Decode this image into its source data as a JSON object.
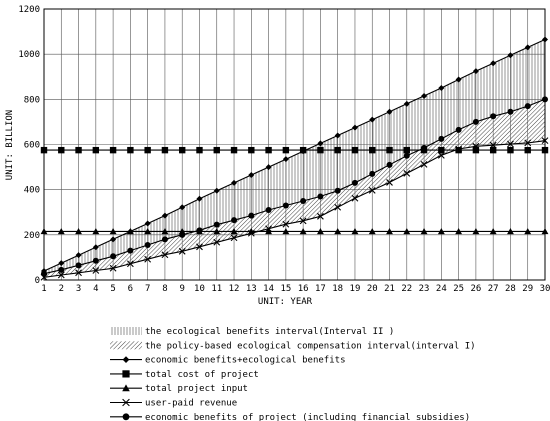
{
  "chart_data": {
    "type": "line",
    "xlabel": "UNIT: YEAR",
    "ylabel": "UNIT: BILLION",
    "xlim": [
      1,
      30
    ],
    "ylim": [
      0,
      1200
    ],
    "x_ticks": [
      1,
      2,
      3,
      4,
      5,
      6,
      7,
      8,
      9,
      10,
      11,
      12,
      13,
      14,
      15,
      16,
      17,
      18,
      19,
      20,
      21,
      22,
      23,
      24,
      25,
      26,
      27,
      28,
      29,
      30
    ],
    "y_ticks": [
      0,
      200,
      400,
      600,
      800,
      1000,
      1200
    ],
    "grid": true,
    "legend_position": "bottom",
    "x": [
      1,
      2,
      3,
      4,
      5,
      6,
      7,
      8,
      9,
      10,
      11,
      12,
      13,
      14,
      15,
      16,
      17,
      18,
      19,
      20,
      21,
      22,
      23,
      24,
      25,
      26,
      27,
      28,
      29,
      30
    ],
    "series": [
      {
        "name": "economic benefits+ecological benefits",
        "marker": "diamond",
        "values": [
          40,
          75,
          110,
          145,
          180,
          215,
          250,
          285,
          322,
          360,
          395,
          430,
          465,
          500,
          535,
          570,
          605,
          640,
          675,
          710,
          745,
          780,
          815,
          850,
          888,
          925,
          960,
          995,
          1030,
          1065
        ]
      },
      {
        "name": "total cost of project",
        "marker": "square",
        "values": [
          575,
          575,
          575,
          575,
          575,
          575,
          575,
          575,
          575,
          575,
          575,
          575,
          575,
          575,
          575,
          575,
          575,
          575,
          575,
          575,
          575,
          575,
          575,
          575,
          575,
          575,
          575,
          575,
          575,
          575
        ]
      },
      {
        "name": "total project input",
        "marker": "triangle",
        "values": [
          215,
          215,
          215,
          215,
          215,
          215,
          215,
          215,
          215,
          215,
          215,
          215,
          215,
          215,
          215,
          215,
          215,
          215,
          215,
          215,
          215,
          215,
          215,
          215,
          215,
          215,
          215,
          215,
          215,
          215
        ]
      },
      {
        "name": "user-paid revenue",
        "marker": "x",
        "values": [
          12,
          22,
          32,
          42,
          52,
          72,
          92,
          112,
          127,
          147,
          167,
          187,
          207,
          227,
          247,
          262,
          282,
          322,
          362,
          397,
          432,
          472,
          512,
          552,
          580,
          592,
          597,
          602,
          607,
          617
        ]
      },
      {
        "name": "economic benefits of project (including financial subsidies)",
        "marker": "circle",
        "values": [
          28,
          45,
          65,
          85,
          105,
          130,
          155,
          180,
          200,
          220,
          245,
          265,
          285,
          310,
          330,
          350,
          370,
          395,
          430,
          470,
          510,
          550,
          585,
          625,
          665,
          700,
          725,
          745,
          770,
          800
        ]
      }
    ],
    "bands": [
      {
        "name": "the ecological benefits interval(Interval II )",
        "pattern": "vertical-lines",
        "upper": "economic benefits+ecological benefits",
        "lower": "economic benefits of project (including financial subsidies)"
      },
      {
        "name": "the policy-based ecological compensation interval(interval I)",
        "pattern": "diagonal-lines",
        "upper": "economic benefits of project (including financial subsidies)",
        "lower": "user-paid revenue"
      }
    ]
  }
}
